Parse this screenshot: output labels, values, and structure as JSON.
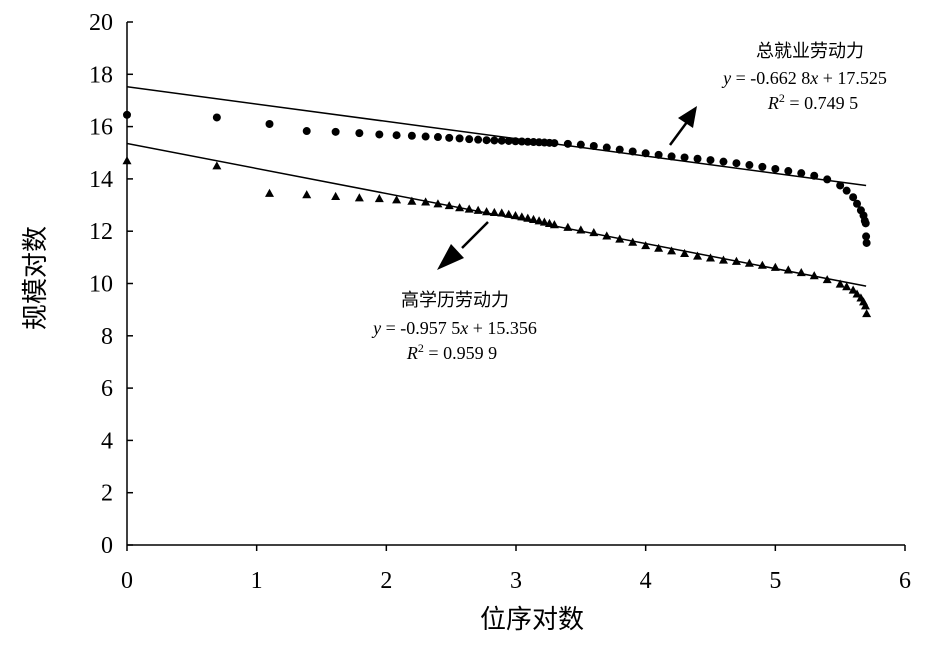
{
  "chart_data": {
    "type": "scatter",
    "xlabel": "位序对数",
    "ylabel": "规模对数",
    "xlim": [
      0,
      6
    ],
    "ylim": [
      0,
      20
    ],
    "x_ticks": [
      0,
      1,
      2,
      3,
      4,
      5,
      6
    ],
    "y_ticks": [
      0,
      2,
      4,
      6,
      8,
      10,
      12,
      14,
      16,
      18,
      20
    ],
    "grid": false,
    "series": [
      {
        "name": "总就业劳动力",
        "marker": "circle",
        "color": "#000000",
        "points": [
          [
            0,
            16.45
          ],
          [
            0.693,
            16.35
          ],
          [
            1.099,
            16.1
          ],
          [
            1.386,
            15.83
          ],
          [
            1.609,
            15.8
          ],
          [
            1.792,
            15.75
          ],
          [
            1.946,
            15.7
          ],
          [
            2.079,
            15.67
          ],
          [
            2.197,
            15.65
          ],
          [
            2.303,
            15.62
          ],
          [
            2.398,
            15.6
          ],
          [
            2.485,
            15.57
          ],
          [
            2.565,
            15.55
          ],
          [
            2.639,
            15.52
          ],
          [
            2.708,
            15.5
          ],
          [
            2.773,
            15.48
          ],
          [
            2.833,
            15.47
          ],
          [
            2.89,
            15.46
          ],
          [
            2.944,
            15.45
          ],
          [
            2.996,
            15.44
          ],
          [
            3.045,
            15.43
          ],
          [
            3.091,
            15.42
          ],
          [
            3.135,
            15.41
          ],
          [
            3.178,
            15.4
          ],
          [
            3.219,
            15.39
          ],
          [
            3.258,
            15.38
          ],
          [
            3.296,
            15.37
          ],
          [
            3.4,
            15.34
          ],
          [
            3.5,
            15.31
          ],
          [
            3.6,
            15.26
          ],
          [
            3.7,
            15.2
          ],
          [
            3.8,
            15.12
          ],
          [
            3.9,
            15.05
          ],
          [
            4.0,
            14.98
          ],
          [
            4.1,
            14.92
          ],
          [
            4.2,
            14.86
          ],
          [
            4.3,
            14.82
          ],
          [
            4.4,
            14.77
          ],
          [
            4.5,
            14.72
          ],
          [
            4.6,
            14.66
          ],
          [
            4.7,
            14.6
          ],
          [
            4.8,
            14.53
          ],
          [
            4.9,
            14.46
          ],
          [
            5.0,
            14.38
          ],
          [
            5.1,
            14.3
          ],
          [
            5.2,
            14.22
          ],
          [
            5.3,
            14.12
          ],
          [
            5.4,
            13.98
          ],
          [
            5.5,
            13.75
          ],
          [
            5.55,
            13.55
          ],
          [
            5.6,
            13.3
          ],
          [
            5.63,
            13.05
          ],
          [
            5.66,
            12.8
          ],
          [
            5.68,
            12.6
          ],
          [
            5.69,
            12.4
          ],
          [
            5.697,
            12.3
          ],
          [
            5.7,
            11.8
          ],
          [
            5.704,
            11.55
          ]
        ]
      },
      {
        "name": "高学历劳动力",
        "marker": "triangle",
        "color": "#000000",
        "points": [
          [
            0,
            14.7
          ],
          [
            0.693,
            14.5
          ],
          [
            1.099,
            13.45
          ],
          [
            1.386,
            13.4
          ],
          [
            1.609,
            13.33
          ],
          [
            1.792,
            13.28
          ],
          [
            1.946,
            13.25
          ],
          [
            2.079,
            13.2
          ],
          [
            2.197,
            13.15
          ],
          [
            2.303,
            13.12
          ],
          [
            2.398,
            13.05
          ],
          [
            2.485,
            12.98
          ],
          [
            2.565,
            12.9
          ],
          [
            2.639,
            12.85
          ],
          [
            2.708,
            12.8
          ],
          [
            2.773,
            12.75
          ],
          [
            2.833,
            12.72
          ],
          [
            2.89,
            12.7
          ],
          [
            2.944,
            12.65
          ],
          [
            2.996,
            12.6
          ],
          [
            3.045,
            12.55
          ],
          [
            3.091,
            12.5
          ],
          [
            3.135,
            12.45
          ],
          [
            3.178,
            12.4
          ],
          [
            3.219,
            12.35
          ],
          [
            3.258,
            12.3
          ],
          [
            3.296,
            12.25
          ],
          [
            3.4,
            12.15
          ],
          [
            3.5,
            12.05
          ],
          [
            3.6,
            11.95
          ],
          [
            3.7,
            11.82
          ],
          [
            3.8,
            11.7
          ],
          [
            3.9,
            11.58
          ],
          [
            4.0,
            11.45
          ],
          [
            4.1,
            11.35
          ],
          [
            4.2,
            11.25
          ],
          [
            4.3,
            11.15
          ],
          [
            4.4,
            11.05
          ],
          [
            4.5,
            10.98
          ],
          [
            4.6,
            10.9
          ],
          [
            4.7,
            10.85
          ],
          [
            4.8,
            10.78
          ],
          [
            4.9,
            10.7
          ],
          [
            5.0,
            10.62
          ],
          [
            5.1,
            10.52
          ],
          [
            5.2,
            10.42
          ],
          [
            5.3,
            10.3
          ],
          [
            5.4,
            10.15
          ],
          [
            5.5,
            9.98
          ],
          [
            5.55,
            9.88
          ],
          [
            5.6,
            9.75
          ],
          [
            5.63,
            9.6
          ],
          [
            5.66,
            9.45
          ],
          [
            5.68,
            9.3
          ],
          [
            5.695,
            9.15
          ],
          [
            5.704,
            8.85
          ]
        ]
      }
    ],
    "trendlines": [
      {
        "series": "总就业劳动力",
        "slope": -0.6628,
        "intercept": 17.525,
        "x_range": [
          0,
          5.7
        ]
      },
      {
        "series": "高学历劳动力",
        "slope": -0.9575,
        "intercept": 15.356,
        "x_range": [
          0,
          5.7
        ]
      }
    ],
    "annotations": [
      {
        "id": "total",
        "title": "总就业劳动力",
        "eq_prefix": "y",
        "eq_mid": " = -0.662 8",
        "eq_var": "x",
        "eq_rest": " + 17.525",
        "r2_prefix": "R",
        "r2_sup": "2",
        "r2_rest": " = 0.749 5"
      },
      {
        "id": "higher",
        "title": "高学历劳动力",
        "eq_prefix": "y",
        "eq_mid": " = -0.957 5",
        "eq_var": "x",
        "eq_rest": " + 15.356",
        "r2_prefix": "R",
        "r2_sup": "2",
        "r2_rest": " = 0.959 9"
      }
    ]
  }
}
